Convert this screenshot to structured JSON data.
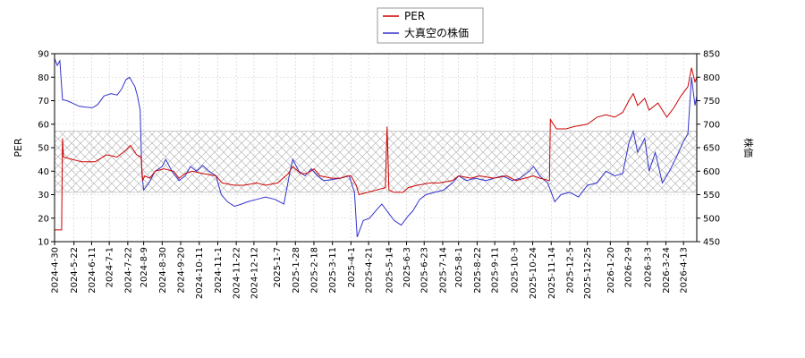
{
  "chart_data": {
    "type": "line",
    "legend": {
      "placement": "top-center"
    },
    "grid": true,
    "band": {
      "axis": "left",
      "range": [
        31,
        57
      ],
      "pattern": "crosshatch"
    },
    "left_axis": {
      "label": "PER",
      "ylim": [
        10,
        90
      ],
      "ticks": [
        10,
        20,
        30,
        40,
        50,
        60,
        70,
        80,
        90
      ]
    },
    "right_axis": {
      "label": "株価",
      "ylim": [
        450,
        850
      ],
      "ticks": [
        450,
        500,
        550,
        600,
        650,
        700,
        750,
        800,
        850
      ]
    },
    "x_axis": {
      "range": [
        "2024-04-30",
        "2026-04-28"
      ],
      "tick_labels": [
        "2024-4-30",
        "2024-5-22",
        "2024-6-11",
        "2024-7-1",
        "2024-7-22",
        "2024-8-9",
        "2024-8-30",
        "2024-9-20",
        "2024-10-11",
        "2024-11-1",
        "2024-11-22",
        "2024-12-12",
        "2025-1-7",
        "2025-1-28",
        "2025-2-18",
        "2025-3-11",
        "2025-4-1",
        "2025-4-21",
        "2025-5-14",
        "2025-6-3",
        "2025-6-23",
        "2025-7-14",
        "2025-8-1",
        "2025-8-22",
        "2025-9-11",
        "2025-10-3",
        "2025-10-24",
        "2025-11-14",
        "2025-12-5",
        "2025-12-25",
        "2026-1-20",
        "2026-2-9",
        "2026-3-3",
        "2026-3-24",
        "2026-4-13"
      ]
    },
    "series": [
      {
        "name": "PER",
        "color": "#cc0000",
        "axis": "left",
        "points": [
          [
            "2024-04-30",
            15
          ],
          [
            "2024-05-08",
            15
          ],
          [
            "2024-05-09",
            54
          ],
          [
            "2024-05-10",
            46
          ],
          [
            "2024-05-20",
            45
          ],
          [
            "2024-05-31",
            44
          ],
          [
            "2024-06-15",
            44
          ],
          [
            "2024-06-28",
            47
          ],
          [
            "2024-07-10",
            46
          ],
          [
            "2024-07-20",
            49
          ],
          [
            "2024-07-25",
            51
          ],
          [
            "2024-08-01",
            47
          ],
          [
            "2024-08-06",
            46
          ],
          [
            "2024-08-08",
            36
          ],
          [
            "2024-08-10",
            38
          ],
          [
            "2024-08-16",
            37
          ],
          [
            "2024-08-22",
            40
          ],
          [
            "2024-09-01",
            41
          ],
          [
            "2024-09-12",
            40
          ],
          [
            "2024-09-18",
            37
          ],
          [
            "2024-09-25",
            39
          ],
          [
            "2024-10-03",
            40
          ],
          [
            "2024-10-15",
            39
          ],
          [
            "2024-10-30",
            38
          ],
          [
            "2024-11-06",
            35
          ],
          [
            "2024-11-20",
            34
          ],
          [
            "2024-12-01",
            34
          ],
          [
            "2024-12-15",
            35
          ],
          [
            "2024-12-25",
            34
          ],
          [
            "2025-01-08",
            35
          ],
          [
            "2025-01-20",
            39
          ],
          [
            "2025-01-25",
            42
          ],
          [
            "2025-02-03",
            39
          ],
          [
            "2025-02-10",
            39
          ],
          [
            "2025-02-18",
            41
          ],
          [
            "2025-02-25",
            38
          ],
          [
            "2025-03-10",
            37
          ],
          [
            "2025-03-20",
            37
          ],
          [
            "2025-03-28",
            38
          ],
          [
            "2025-04-01",
            38
          ],
          [
            "2025-04-07",
            34
          ],
          [
            "2025-04-10",
            30
          ],
          [
            "2025-04-20",
            31
          ],
          [
            "2025-04-30",
            32
          ],
          [
            "2025-05-10",
            33
          ],
          [
            "2025-05-12",
            59
          ],
          [
            "2025-05-14",
            32
          ],
          [
            "2025-05-20",
            31
          ],
          [
            "2025-05-30",
            31
          ],
          [
            "2025-06-05",
            33
          ],
          [
            "2025-06-15",
            34
          ],
          [
            "2025-06-30",
            35
          ],
          [
            "2025-07-10",
            35
          ],
          [
            "2025-07-25",
            36
          ],
          [
            "2025-08-01",
            38
          ],
          [
            "2025-08-15",
            37
          ],
          [
            "2025-08-25",
            38
          ],
          [
            "2025-09-10",
            37
          ],
          [
            "2025-09-25",
            38
          ],
          [
            "2025-10-05",
            36
          ],
          [
            "2025-10-15",
            37
          ],
          [
            "2025-10-25",
            38
          ],
          [
            "2025-11-01",
            37
          ],
          [
            "2025-11-12",
            36
          ],
          [
            "2025-11-13",
            62
          ],
          [
            "2025-11-20",
            58
          ],
          [
            "2025-12-01",
            58
          ],
          [
            "2025-12-10",
            59
          ],
          [
            "2025-12-25",
            60
          ],
          [
            "2026-01-05",
            63
          ],
          [
            "2026-01-15",
            64
          ],
          [
            "2026-01-25",
            63
          ],
          [
            "2026-02-03",
            65
          ],
          [
            "2026-02-10",
            70
          ],
          [
            "2026-02-15",
            73
          ],
          [
            "2026-02-20",
            68
          ],
          [
            "2026-02-28",
            71
          ],
          [
            "2026-03-05",
            66
          ],
          [
            "2026-03-15",
            69
          ],
          [
            "2026-03-25",
            63
          ],
          [
            "2026-04-02",
            67
          ],
          [
            "2026-04-10",
            72
          ],
          [
            "2026-04-18",
            76
          ],
          [
            "2026-04-22",
            84
          ],
          [
            "2026-04-26",
            78
          ],
          [
            "2026-04-28",
            80
          ]
        ]
      },
      {
        "name": "大真空の株価",
        "color": "#3333cc",
        "axis": "right",
        "points": [
          [
            "2024-04-30",
            840
          ],
          [
            "2024-05-03",
            825
          ],
          [
            "2024-05-06",
            835
          ],
          [
            "2024-05-09",
            752
          ],
          [
            "2024-05-14",
            750
          ],
          [
            "2024-05-20",
            745
          ],
          [
            "2024-05-28",
            738
          ],
          [
            "2024-06-05",
            736
          ],
          [
            "2024-06-12",
            735
          ],
          [
            "2024-06-18",
            742
          ],
          [
            "2024-06-25",
            760
          ],
          [
            "2024-07-03",
            765
          ],
          [
            "2024-07-10",
            762
          ],
          [
            "2024-07-15",
            775
          ],
          [
            "2024-07-20",
            795
          ],
          [
            "2024-07-24",
            800
          ],
          [
            "2024-07-30",
            780
          ],
          [
            "2024-08-02",
            760
          ],
          [
            "2024-08-05",
            730
          ],
          [
            "2024-08-07",
            595
          ],
          [
            "2024-08-09",
            560
          ],
          [
            "2024-08-15",
            575
          ],
          [
            "2024-08-22",
            600
          ],
          [
            "2024-08-30",
            610
          ],
          [
            "2024-09-03",
            625
          ],
          [
            "2024-09-10",
            600
          ],
          [
            "2024-09-18",
            580
          ],
          [
            "2024-09-25",
            590
          ],
          [
            "2024-10-01",
            610
          ],
          [
            "2024-10-08",
            600
          ],
          [
            "2024-10-15",
            612
          ],
          [
            "2024-10-22",
            600
          ],
          [
            "2024-10-30",
            590
          ],
          [
            "2024-11-05",
            550
          ],
          [
            "2024-11-12",
            535
          ],
          [
            "2024-11-20",
            525
          ],
          [
            "2024-11-28",
            530
          ],
          [
            "2024-12-05",
            535
          ],
          [
            "2024-12-15",
            540
          ],
          [
            "2024-12-25",
            545
          ],
          [
            "2025-01-05",
            540
          ],
          [
            "2025-01-15",
            530
          ],
          [
            "2025-01-22",
            600
          ],
          [
            "2025-01-25",
            625
          ],
          [
            "2025-02-01",
            600
          ],
          [
            "2025-02-08",
            590
          ],
          [
            "2025-02-15",
            605
          ],
          [
            "2025-02-22",
            590
          ],
          [
            "2025-03-01",
            580
          ],
          [
            "2025-03-10",
            582
          ],
          [
            "2025-03-20",
            585
          ],
          [
            "2025-03-30",
            590
          ],
          [
            "2025-04-05",
            555
          ],
          [
            "2025-04-08",
            460
          ],
          [
            "2025-04-15",
            495
          ],
          [
            "2025-04-22",
            500
          ],
          [
            "2025-05-01",
            520
          ],
          [
            "2025-05-06",
            530
          ],
          [
            "2025-05-12",
            515
          ],
          [
            "2025-05-20",
            495
          ],
          [
            "2025-05-28",
            485
          ],
          [
            "2025-06-05",
            505
          ],
          [
            "2025-06-10",
            515
          ],
          [
            "2025-06-18",
            540
          ],
          [
            "2025-06-25",
            550
          ],
          [
            "2025-07-05",
            555
          ],
          [
            "2025-07-15",
            560
          ],
          [
            "2025-07-25",
            575
          ],
          [
            "2025-08-01",
            590
          ],
          [
            "2025-08-10",
            580
          ],
          [
            "2025-08-20",
            585
          ],
          [
            "2025-09-01",
            580
          ],
          [
            "2025-09-10",
            585
          ],
          [
            "2025-09-20",
            590
          ],
          [
            "2025-10-01",
            580
          ],
          [
            "2025-10-10",
            585
          ],
          [
            "2025-10-20",
            600
          ],
          [
            "2025-10-25",
            610
          ],
          [
            "2025-11-01",
            590
          ],
          [
            "2025-11-10",
            575
          ],
          [
            "2025-11-14",
            555
          ],
          [
            "2025-11-18",
            535
          ],
          [
            "2025-11-25",
            550
          ],
          [
            "2025-12-05",
            555
          ],
          [
            "2025-12-15",
            545
          ],
          [
            "2025-12-25",
            570
          ],
          [
            "2026-01-05",
            575
          ],
          [
            "2026-01-15",
            600
          ],
          [
            "2026-01-25",
            590
          ],
          [
            "2026-02-03",
            595
          ],
          [
            "2026-02-10",
            660
          ],
          [
            "2026-02-15",
            685
          ],
          [
            "2026-02-20",
            640
          ],
          [
            "2026-02-28",
            670
          ],
          [
            "2026-03-05",
            600
          ],
          [
            "2026-03-12",
            640
          ],
          [
            "2026-03-20",
            575
          ],
          [
            "2026-03-28",
            600
          ],
          [
            "2026-04-05",
            630
          ],
          [
            "2026-04-12",
            660
          ],
          [
            "2026-04-18",
            680
          ],
          [
            "2026-04-22",
            800
          ],
          [
            "2026-04-26",
            740
          ],
          [
            "2026-04-28",
            760
          ]
        ]
      }
    ]
  }
}
